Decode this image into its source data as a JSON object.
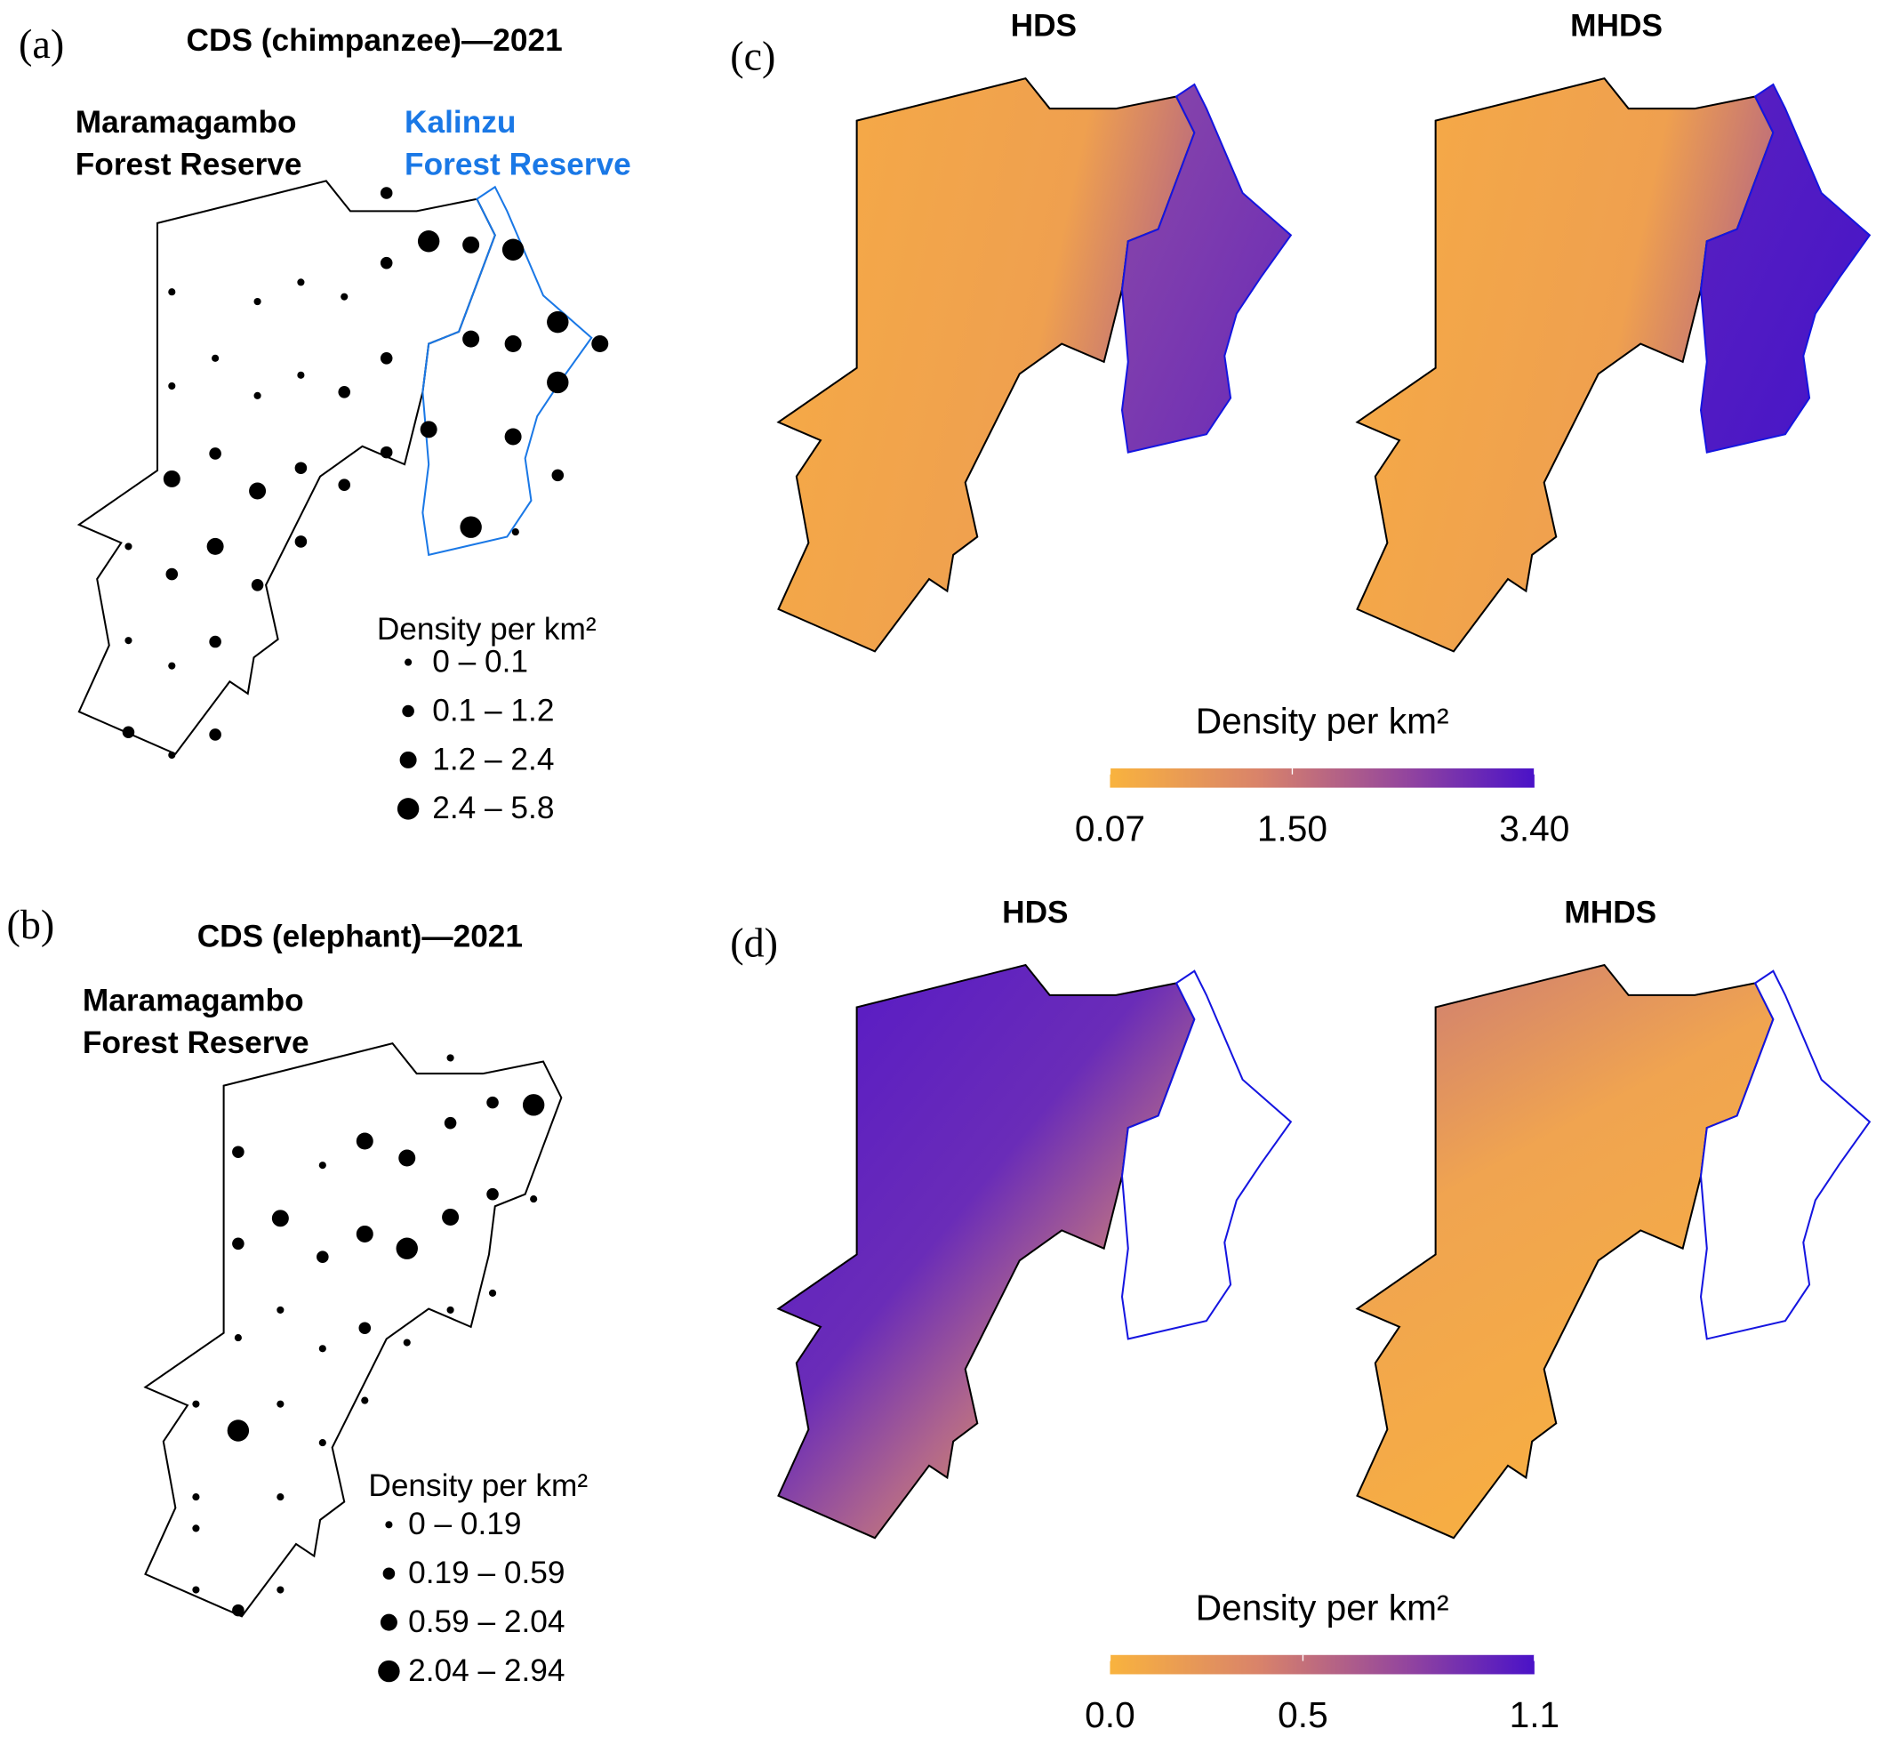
{
  "panels": [
    {
      "label": "(a)",
      "title": "CDS (chimpanzee)—2021",
      "reserve_labels": [
        [
          "Maramagambo",
          "Forest Reserve"
        ],
        [
          "Kalinzu",
          "Forest Reserve"
        ]
      ],
      "legend": {
        "title": "Density per km²",
        "entries": [
          "0 – 0.1",
          "0.1 – 1.2",
          "1.2 – 2.4",
          "2.4 – 5.8"
        ]
      }
    },
    {
      "label": "(b)",
      "title": "CDS (elephant)—2021",
      "reserve_labels": [
        [
          "Maramagambo",
          "Forest Reserve"
        ]
      ],
      "legend": {
        "title": "Density per km²",
        "entries": [
          "0 – 0.19",
          "0.19 – 0.59",
          "0.59 – 2.04",
          "2.04 – 2.94"
        ]
      }
    },
    {
      "label": "(c)",
      "maps": [
        "HDS",
        "MHDS"
      ],
      "colorbar": {
        "title": "Density per km²",
        "lim": [
          0.07,
          3.4
        ],
        "ticks": [
          0.07,
          {
            "value": 1.5,
            "label": "1.50"
          },
          {
            "value": 3.4,
            "label": "3.40"
          }
        ]
      }
    },
    {
      "label": "(d)",
      "maps": [
        "HDS",
        "MHDS"
      ],
      "colorbar": {
        "title": "Density per km²",
        "lim": [
          0,
          1.1
        ],
        "ticks": [
          {
            "value": 0,
            "label": "0.0"
          },
          0.5,
          1.1
        ]
      }
    }
  ]
}
